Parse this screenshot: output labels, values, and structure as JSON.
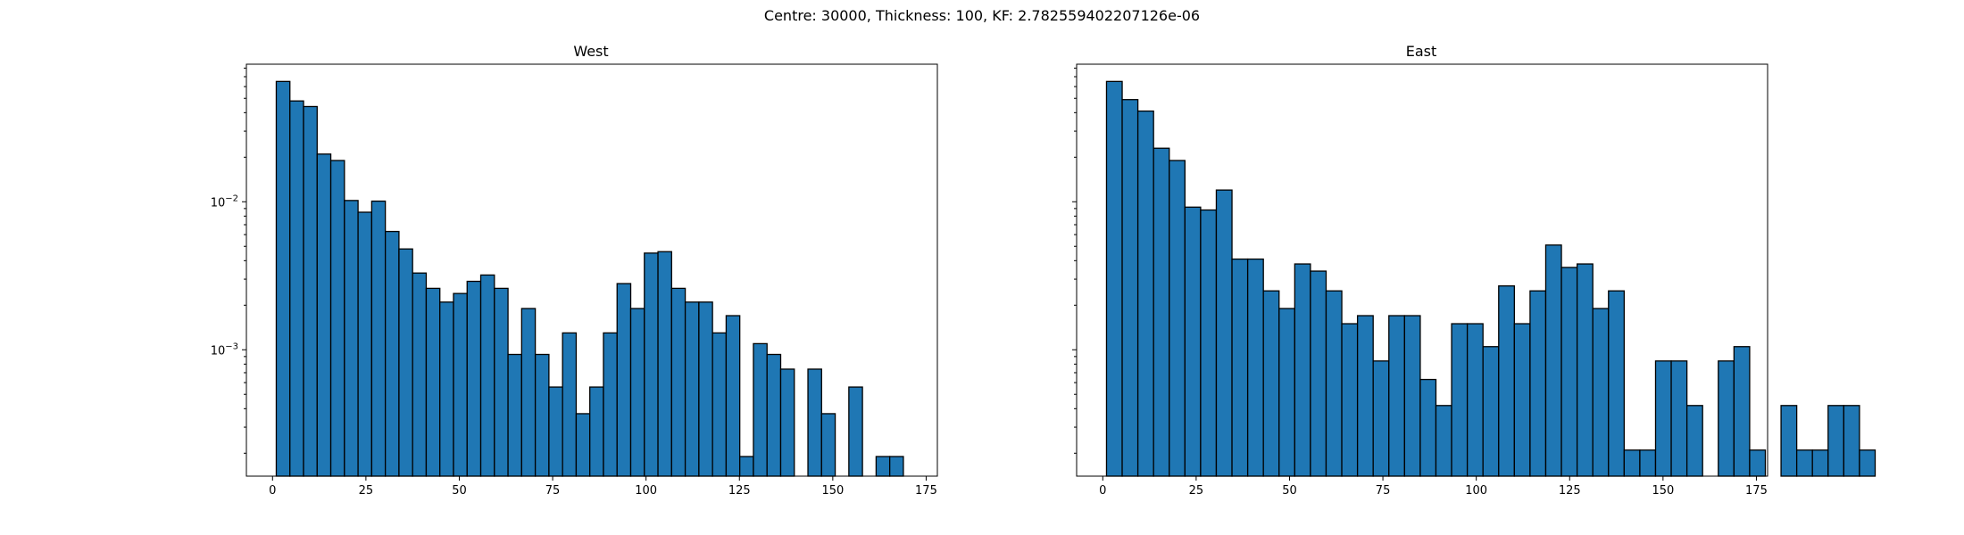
{
  "figure": {
    "suptitle": "Centre: 30000, Thickness: 100, KF: 2.782559402207126e-06"
  },
  "style": {
    "bar_fill": "#1f77b4",
    "bar_edge": "#000000",
    "axis_color": "#000000",
    "background": "#ffffff"
  },
  "chart_data": [
    {
      "type": "bar",
      "title": "West",
      "xlabel": "",
      "ylabel": "",
      "yscale": "log",
      "xlim": [
        -7,
        178
      ],
      "ylim": [
        0.00014,
        0.085
      ],
      "grid": false,
      "xticks": [
        0,
        25,
        50,
        75,
        100,
        125,
        150,
        175
      ],
      "yticks": [
        {
          "value": 0.01,
          "base": "10",
          "exp": "−2"
        },
        {
          "value": 0.001,
          "base": "10",
          "exp": "−3"
        }
      ],
      "bin_width": 3.65,
      "bin_start": 1,
      "values": [
        0.065,
        0.048,
        0.044,
        0.021,
        0.019,
        0.0102,
        0.0085,
        0.0101,
        0.0063,
        0.0048,
        0.0033,
        0.0026,
        0.0021,
        0.0024,
        0.0029,
        0.0032,
        0.0026,
        0.00093,
        0.0019,
        0.00093,
        0.00056,
        0.0013,
        0.00037,
        0.00056,
        0.0013,
        0.0028,
        0.0019,
        0.0045,
        0.0046,
        0.0026,
        0.0021,
        0.0021,
        0.0013,
        0.0017,
        0.00019,
        0.0011,
        0.00093,
        0.00074,
        0,
        0.00074,
        0.00037,
        0,
        0.00056,
        0,
        0.00019,
        0.00019,
        0,
        0
      ]
    },
    {
      "type": "bar",
      "title": "East",
      "xlabel": "",
      "ylabel": "",
      "yscale": "log",
      "xlim": [
        -7,
        178
      ],
      "ylim": [
        0.00014,
        0.085
      ],
      "grid": false,
      "xticks": [
        0,
        25,
        50,
        75,
        100,
        125,
        150,
        175
      ],
      "yticks": [],
      "bin_width": 4.2,
      "bin_start": 1,
      "values": [
        0.065,
        0.049,
        0.041,
        0.023,
        0.019,
        0.0092,
        0.0088,
        0.012,
        0.0041,
        0.0041,
        0.0025,
        0.0019,
        0.0038,
        0.0034,
        0.0025,
        0.0015,
        0.0017,
        0.00084,
        0.0017,
        0.0017,
        0.00063,
        0.00042,
        0.0015,
        0.0015,
        0.00105,
        0.0027,
        0.0015,
        0.0025,
        0.0051,
        0.0036,
        0.0038,
        0.0019,
        0.0025,
        0.00021,
        0.00021,
        0.00084,
        0.00084,
        0.00042,
        0,
        0.00084,
        0.00105,
        0.00021,
        0,
        0.00042,
        0.00021,
        0.00021,
        0.00042,
        0.00042,
        0.00021
      ]
    }
  ]
}
